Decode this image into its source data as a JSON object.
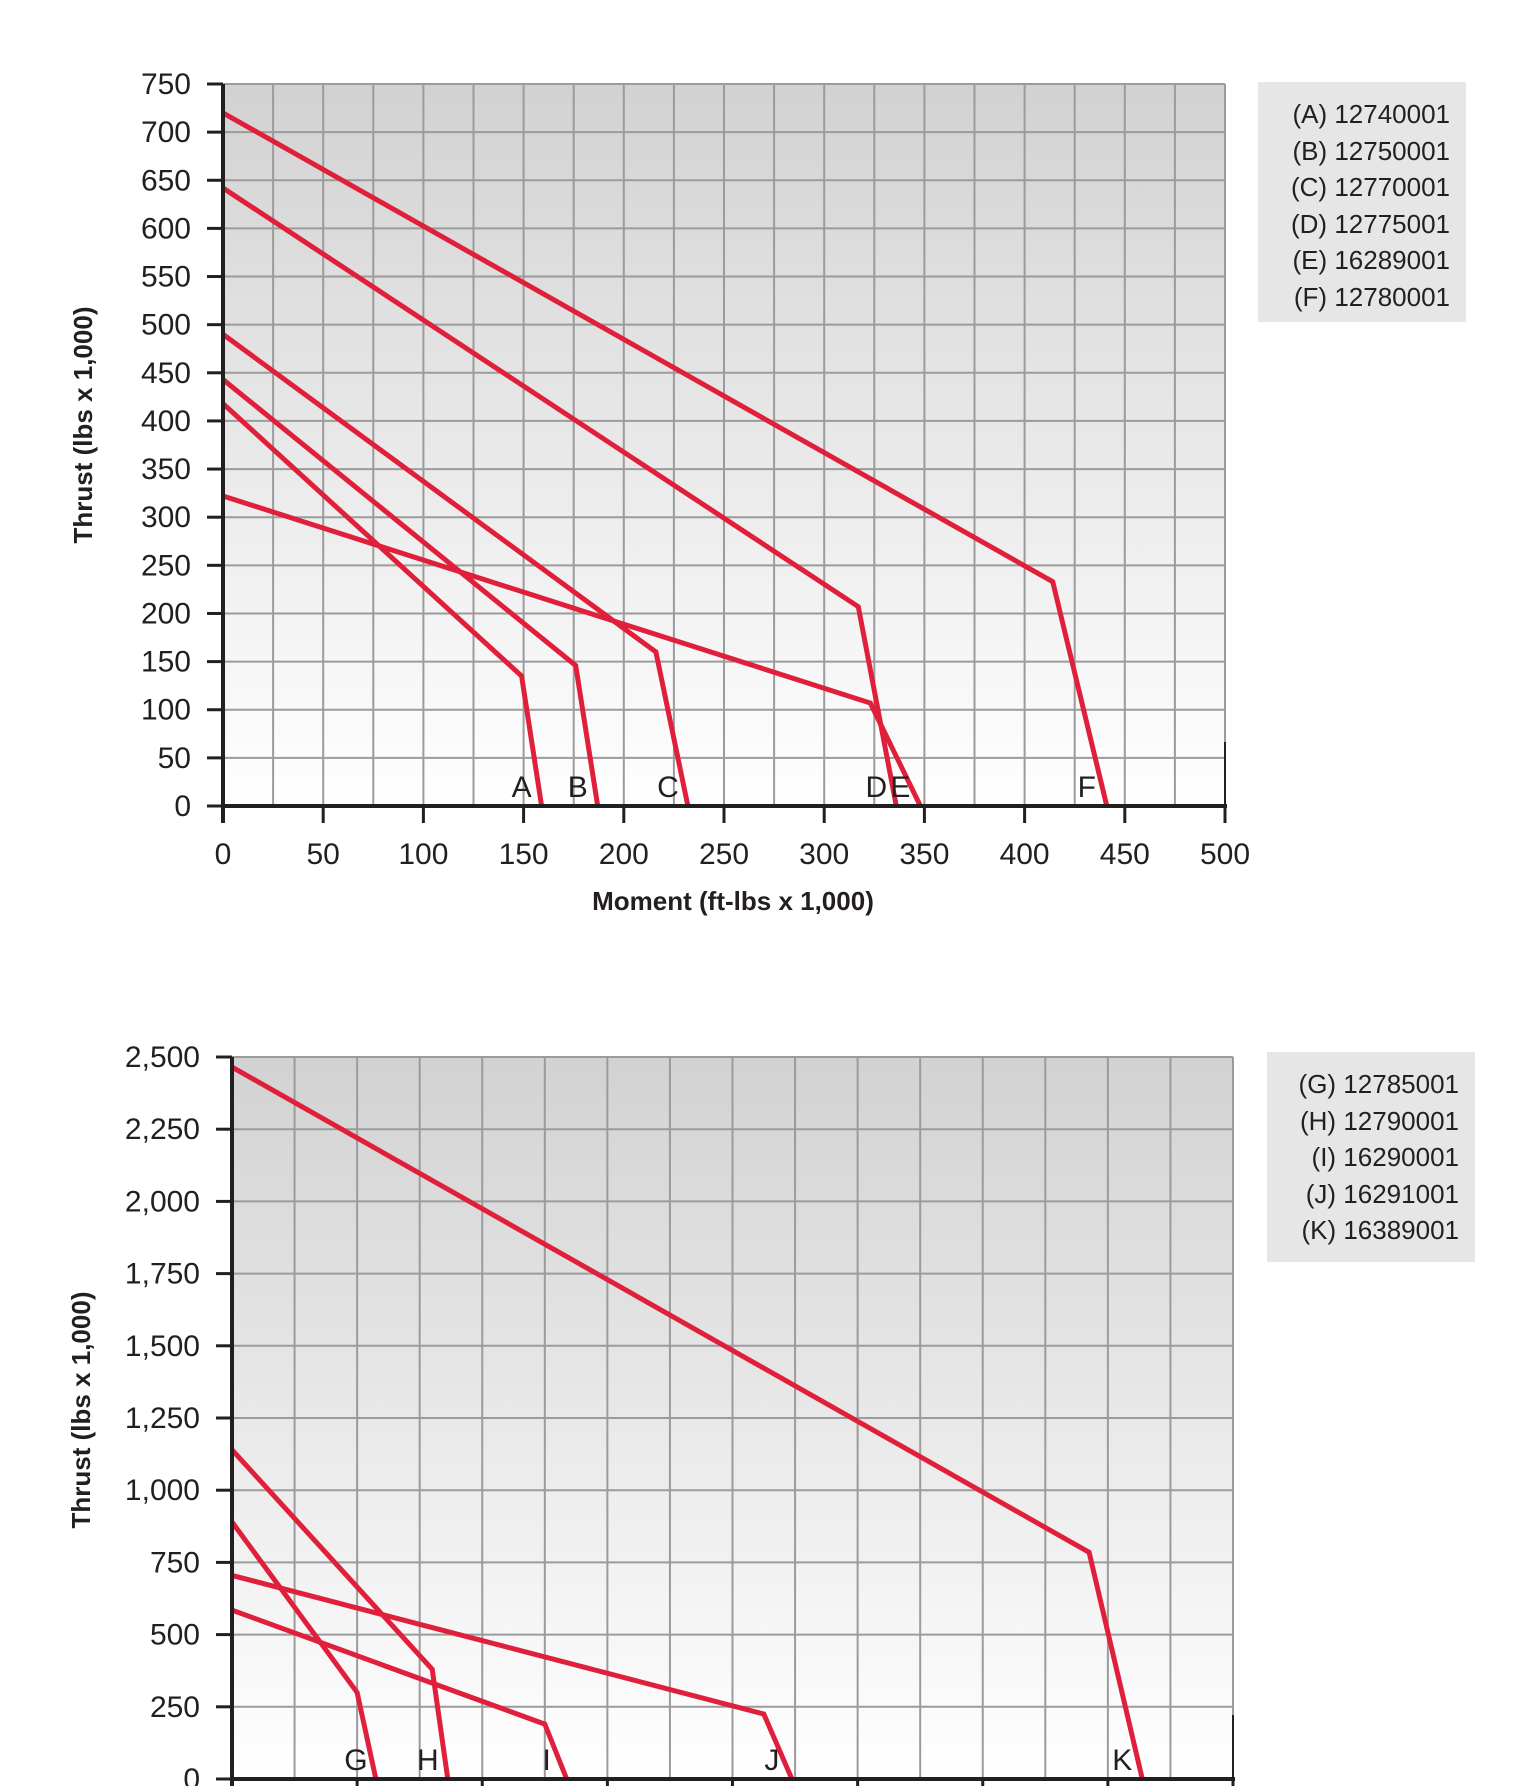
{
  "chart_data": [
    {
      "type": "line",
      "xlabel": "Moment (ft-lbs x 1,000)",
      "ylabel": "Thrust (lbs x 1,000)",
      "xlim": [
        0,
        500
      ],
      "ylim": [
        0,
        750
      ],
      "x_ticks": [
        "0",
        "50",
        "100",
        "150",
        "200",
        "250",
        "300",
        "350",
        "400",
        "450",
        "500"
      ],
      "y_ticks": [
        "0",
        "50",
        "100",
        "150",
        "200",
        "250",
        "300",
        "350",
        "400",
        "450",
        "500",
        "550",
        "600",
        "650",
        "700",
        "750"
      ],
      "grid": true,
      "line_color": "#e0203a",
      "legend": [
        "(A) 12740001",
        "(B) 12750001",
        "(C) 12770001",
        "(D) 12775001",
        "(E) 16289001",
        "(F) 12780001"
      ],
      "series": [
        {
          "name": "A",
          "x": [
            0,
            149,
            159
          ],
          "y": [
            418,
            135,
            0
          ]
        },
        {
          "name": "B",
          "x": [
            0,
            176,
            187
          ],
          "y": [
            443,
            146,
            0
          ]
        },
        {
          "name": "C",
          "x": [
            0,
            216,
            232
          ],
          "y": [
            490,
            160,
            0
          ]
        },
        {
          "name": "D",
          "x": [
            0,
            317,
            336
          ],
          "y": [
            642,
            207,
            0
          ]
        },
        {
          "name": "E",
          "x": [
            0,
            323,
            348
          ],
          "y": [
            322,
            107,
            0
          ]
        },
        {
          "name": "F",
          "x": [
            0,
            414,
            441
          ],
          "y": [
            720,
            233,
            0
          ]
        }
      ]
    },
    {
      "type": "line",
      "xlabel": "",
      "ylabel": "Thrust (lbs x 1,000)",
      "ylim": [
        0,
        2500
      ],
      "x_divisions": 16,
      "y_ticks": [
        "0",
        "250",
        "500",
        "750",
        "1,000",
        "1,250",
        "1,500",
        "1,750",
        "2,000",
        "2,250",
        "2,500"
      ],
      "grid": true,
      "line_color": "#e0203a",
      "legend": [
        "(G) 12785001",
        "(H) 12790001",
        "(I) 16290001",
        "(J) 16291001",
        "(K) 16389001"
      ],
      "series": [
        {
          "name": "G",
          "x": [
            0,
            2.0,
            2.3
          ],
          "y": [
            890,
            300,
            0
          ]
        },
        {
          "name": "H",
          "x": [
            0,
            3.2,
            3.45
          ],
          "y": [
            1140,
            380,
            0
          ]
        },
        {
          "name": "I",
          "x": [
            0,
            5.0,
            5.35
          ],
          "y": [
            585,
            190,
            0
          ]
        },
        {
          "name": "J",
          "x": [
            0,
            8.5,
            8.95
          ],
          "y": [
            705,
            225,
            0
          ]
        },
        {
          "name": "K",
          "x": [
            0,
            13.7,
            14.55
          ],
          "y": [
            2465,
            785,
            0
          ]
        }
      ]
    }
  ]
}
